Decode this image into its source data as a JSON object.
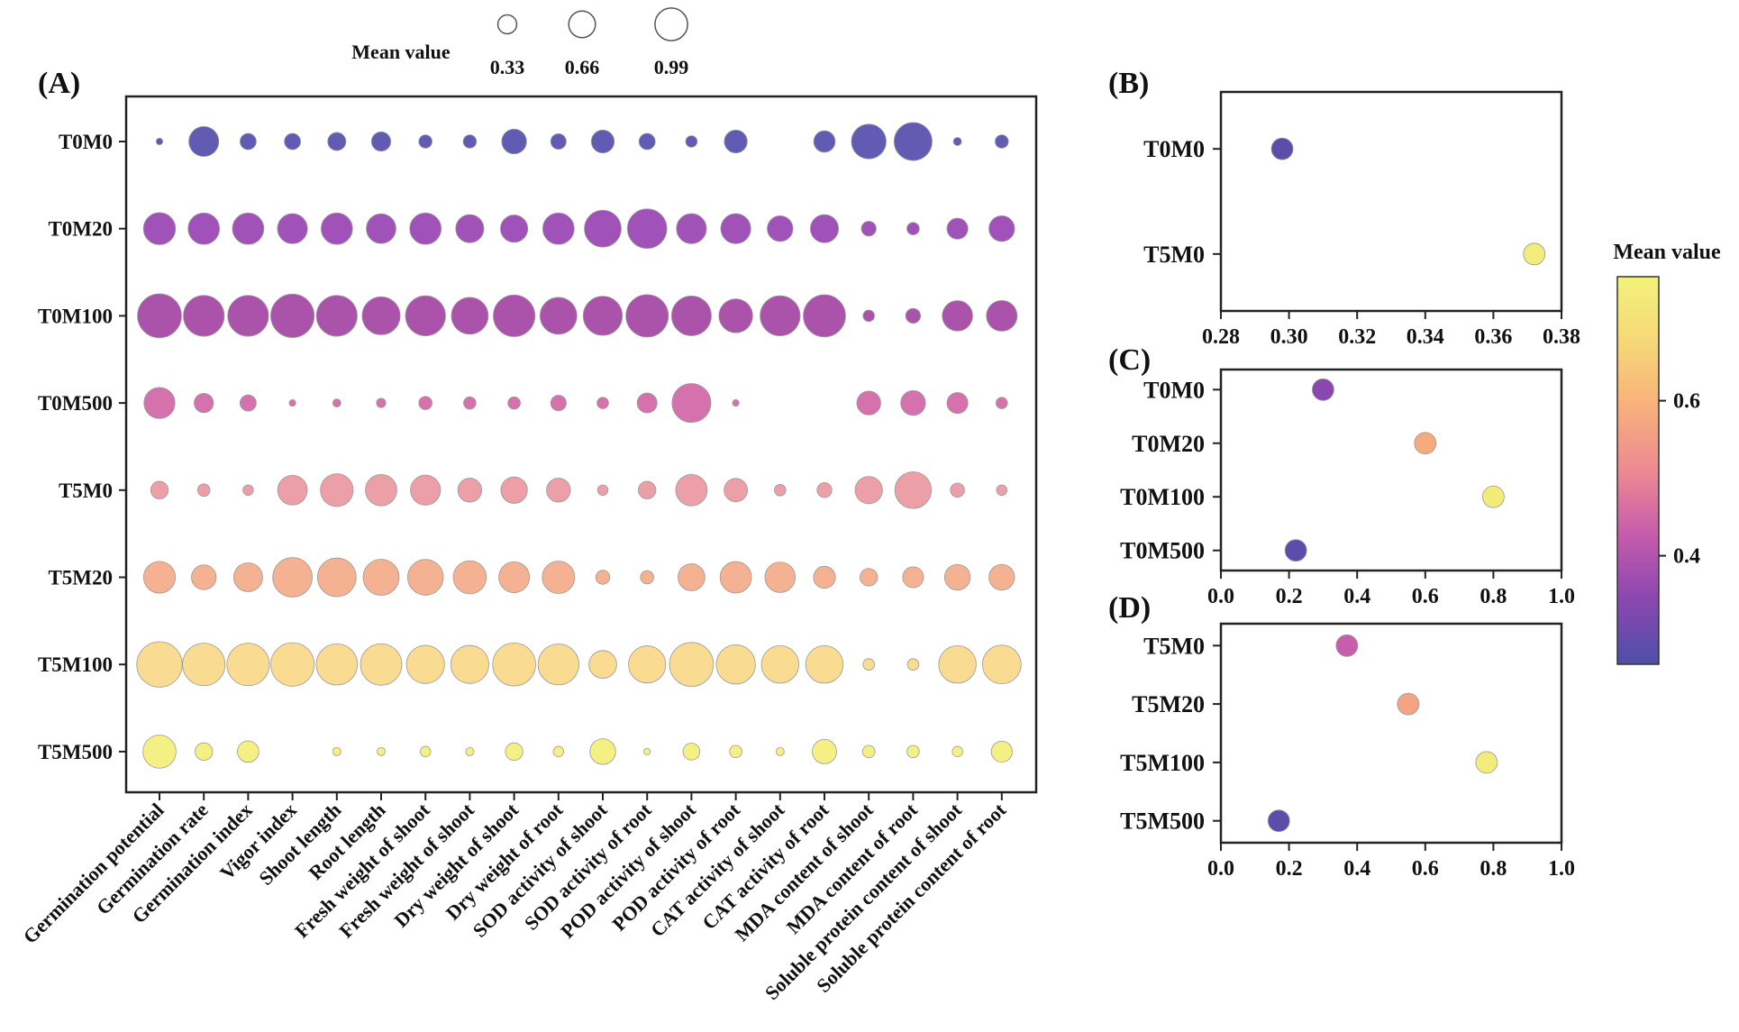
{
  "size_legend": {
    "title": "Mean value",
    "values": [
      0.33,
      0.66,
      0.99
    ],
    "labels": [
      "0.33",
      "0.66",
      "0.99"
    ]
  },
  "colorbar": {
    "title": "Mean value",
    "tick_values": [
      0.4,
      0.6
    ],
    "tick_labels": [
      "0.4",
      "0.6"
    ],
    "range": [
      0.26,
      0.76
    ],
    "colors": [
      "#4e4fa8",
      "#8a47b0",
      "#c65bac",
      "#ec8a92",
      "#f8b07c",
      "#f6d878",
      "#f3f27a"
    ]
  },
  "chart_data": [
    {
      "panel": "A",
      "panel_label": "(A)",
      "type": "scatter",
      "subtype": "bubble-matrix",
      "rows": [
        "T0M0",
        "T0M20",
        "T0M100",
        "T0M500",
        "T5M0",
        "T5M20",
        "T5M100",
        "T5M500"
      ],
      "row_colors": [
        "#5a52b0",
        "#9b49b5",
        "#a64aa6",
        "#d36aa9",
        "#ec9aa3",
        "#f4ae8d",
        "#f9d98b",
        "#f3ef7c"
      ],
      "columns": [
        "Germination potential",
        "Germination rate",
        "Germination index",
        "Vigor index",
        "Shoot length",
        "Root length",
        "Fresh weight of shoot",
        "Fresh weight of shoot",
        "Dry weight of shoot",
        "Dry weight of root",
        "SOD activity of shoot",
        "SOD activity of root",
        "POD activity of shoot",
        "POD activity of root",
        "CAT activity of shoot",
        "CAT activity of root",
        "MDA content of shoot",
        "MDA content of root",
        "Soluble protein content of shoot",
        "Soluble protein content of root"
      ],
      "values": [
        [
          0.02,
          0.41,
          0.12,
          0.12,
          0.15,
          0.17,
          0.08,
          0.08,
          0.28,
          0.11,
          0.24,
          0.12,
          0.06,
          0.24,
          0.0,
          0.21,
          0.55,
          0.66,
          0.03,
          0.08
        ],
        [
          0.47,
          0.45,
          0.45,
          0.41,
          0.45,
          0.4,
          0.45,
          0.36,
          0.34,
          0.45,
          0.62,
          0.71,
          0.41,
          0.41,
          0.3,
          0.36,
          0.1,
          0.07,
          0.2,
          0.3
        ],
        [
          0.88,
          0.76,
          0.76,
          0.86,
          0.76,
          0.66,
          0.73,
          0.62,
          0.79,
          0.62,
          0.7,
          0.82,
          0.72,
          0.52,
          0.73,
          0.81,
          0.06,
          0.1,
          0.42,
          0.43
        ],
        [
          0.44,
          0.17,
          0.12,
          0.02,
          0.03,
          0.04,
          0.08,
          0.07,
          0.07,
          0.11,
          0.06,
          0.18,
          0.69,
          0.02,
          0.0,
          0.0,
          0.26,
          0.28,
          0.2,
          0.06
        ],
        [
          0.14,
          0.07,
          0.05,
          0.4,
          0.49,
          0.45,
          0.41,
          0.26,
          0.32,
          0.26,
          0.05,
          0.14,
          0.45,
          0.25,
          0.06,
          0.1,
          0.34,
          0.61,
          0.09,
          0.05
        ],
        [
          0.46,
          0.28,
          0.38,
          0.71,
          0.68,
          0.59,
          0.58,
          0.5,
          0.43,
          0.48,
          0.09,
          0.08,
          0.33,
          0.45,
          0.42,
          0.22,
          0.14,
          0.2,
          0.3,
          0.3
        ],
        [
          0.94,
          0.82,
          0.82,
          0.86,
          0.77,
          0.78,
          0.66,
          0.66,
          0.84,
          0.76,
          0.35,
          0.63,
          0.88,
          0.7,
          0.64,
          0.64,
          0.06,
          0.06,
          0.64,
          0.68
        ],
        [
          0.5,
          0.14,
          0.21,
          0.0,
          0.03,
          0.03,
          0.05,
          0.03,
          0.14,
          0.05,
          0.3,
          0.02,
          0.13,
          0.07,
          0.03,
          0.27,
          0.07,
          0.07,
          0.05,
          0.2
        ]
      ]
    },
    {
      "panel": "B",
      "panel_label": "(B)",
      "type": "scatter",
      "categories": [
        "T0M0",
        "T5M0"
      ],
      "x": [
        0.298,
        0.372
      ],
      "xlim": [
        0.28,
        0.38
      ],
      "xticks": [
        "0.28",
        "0.30",
        "0.32",
        "0.34",
        "0.36",
        "0.38"
      ]
    },
    {
      "panel": "C",
      "panel_label": "(C)",
      "type": "scatter",
      "categories": [
        "T0M0",
        "T0M20",
        "T0M100",
        "T0M500"
      ],
      "x": [
        0.3,
        0.6,
        0.8,
        0.22
      ],
      "xlim": [
        0.0,
        1.0
      ],
      "xticks": [
        "0.0",
        "0.2",
        "0.4",
        "0.6",
        "0.8",
        "1.0"
      ]
    },
    {
      "panel": "D",
      "panel_label": "(D)",
      "type": "scatter",
      "categories": [
        "T5M0",
        "T5M20",
        "T5M100",
        "T5M500"
      ],
      "x": [
        0.37,
        0.55,
        0.78,
        0.17
      ],
      "xlim": [
        0.0,
        1.0
      ],
      "xticks": [
        "0.0",
        "0.2",
        "0.4",
        "0.6",
        "0.8",
        "1.0"
      ]
    }
  ]
}
